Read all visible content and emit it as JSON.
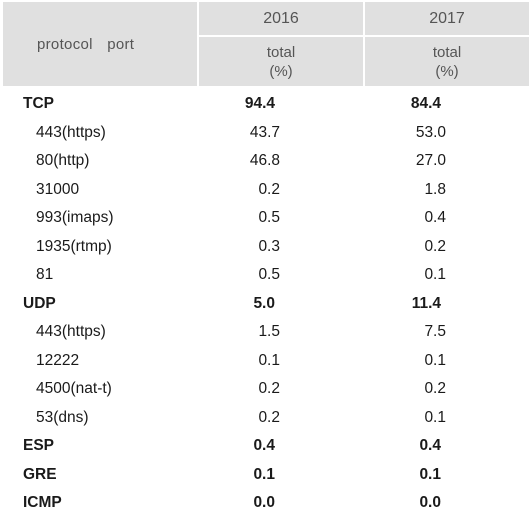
{
  "header": {
    "corner_label": "protocol port",
    "year_2016": "2016",
    "year_2017": "2017",
    "total_label": "total",
    "pct_label": "(%)"
  },
  "rows": [
    {
      "label": "TCP",
      "v2016": "94.4",
      "v2017": "84.4",
      "level": "protocol"
    },
    {
      "label": "443(https)",
      "v2016": "43.7",
      "v2017": "53.0",
      "level": "port"
    },
    {
      "label": "80(http)",
      "v2016": "46.8",
      "v2017": "27.0",
      "level": "port"
    },
    {
      "label": "31000",
      "v2016": "0.2",
      "v2017": "1.8",
      "level": "port"
    },
    {
      "label": "993(imaps)",
      "v2016": "0.5",
      "v2017": "0.4",
      "level": "port"
    },
    {
      "label": "1935(rtmp)",
      "v2016": "0.3",
      "v2017": "0.2",
      "level": "port"
    },
    {
      "label": "81",
      "v2016": "0.5",
      "v2017": "0.1",
      "level": "port"
    },
    {
      "label": "UDP",
      "v2016": "5.0",
      "v2017": "11.4",
      "level": "protocol"
    },
    {
      "label": "443(https)",
      "v2016": "1.5",
      "v2017": "7.5",
      "level": "port"
    },
    {
      "label": "12222",
      "v2016": "0.1",
      "v2017": "0.1",
      "level": "port"
    },
    {
      "label": "4500(nat-t)",
      "v2016": "0.2",
      "v2017": "0.2",
      "level": "port"
    },
    {
      "label": "53(dns)",
      "v2016": "0.2",
      "v2017": "0.1",
      "level": "port"
    },
    {
      "label": "ESP",
      "v2016": "0.4",
      "v2017": "0.4",
      "level": "protocol"
    },
    {
      "label": "GRE",
      "v2016": "0.1",
      "v2017": "0.1",
      "level": "protocol"
    },
    {
      "label": "ICMP",
      "v2016": "0.0",
      "v2017": "0.0",
      "level": "protocol"
    }
  ]
}
